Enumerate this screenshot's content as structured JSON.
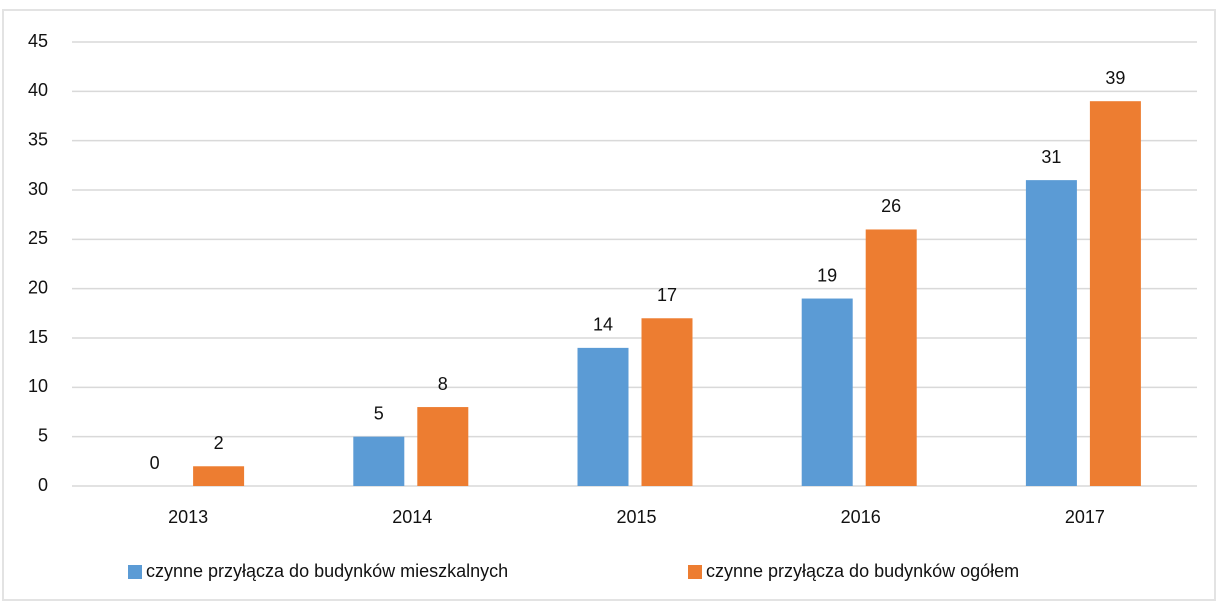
{
  "chart_data": {
    "type": "bar",
    "categories": [
      "2013",
      "2014",
      "2015",
      "2016",
      "2017"
    ],
    "series": [
      {
        "name": "czynne przyłącza do budynków mieszkalnych",
        "color": "#5b9bd5",
        "values": [
          0,
          5,
          14,
          19,
          31
        ]
      },
      {
        "name": "czynne przyłącza do budynków ogółem",
        "color": "#ed7d31",
        "values": [
          2,
          8,
          17,
          26,
          39
        ]
      }
    ],
    "ylim": [
      0,
      45
    ],
    "yticks": [
      0,
      5,
      10,
      15,
      20,
      25,
      30,
      35,
      40,
      45
    ],
    "grid": true,
    "legend": "bottom"
  }
}
